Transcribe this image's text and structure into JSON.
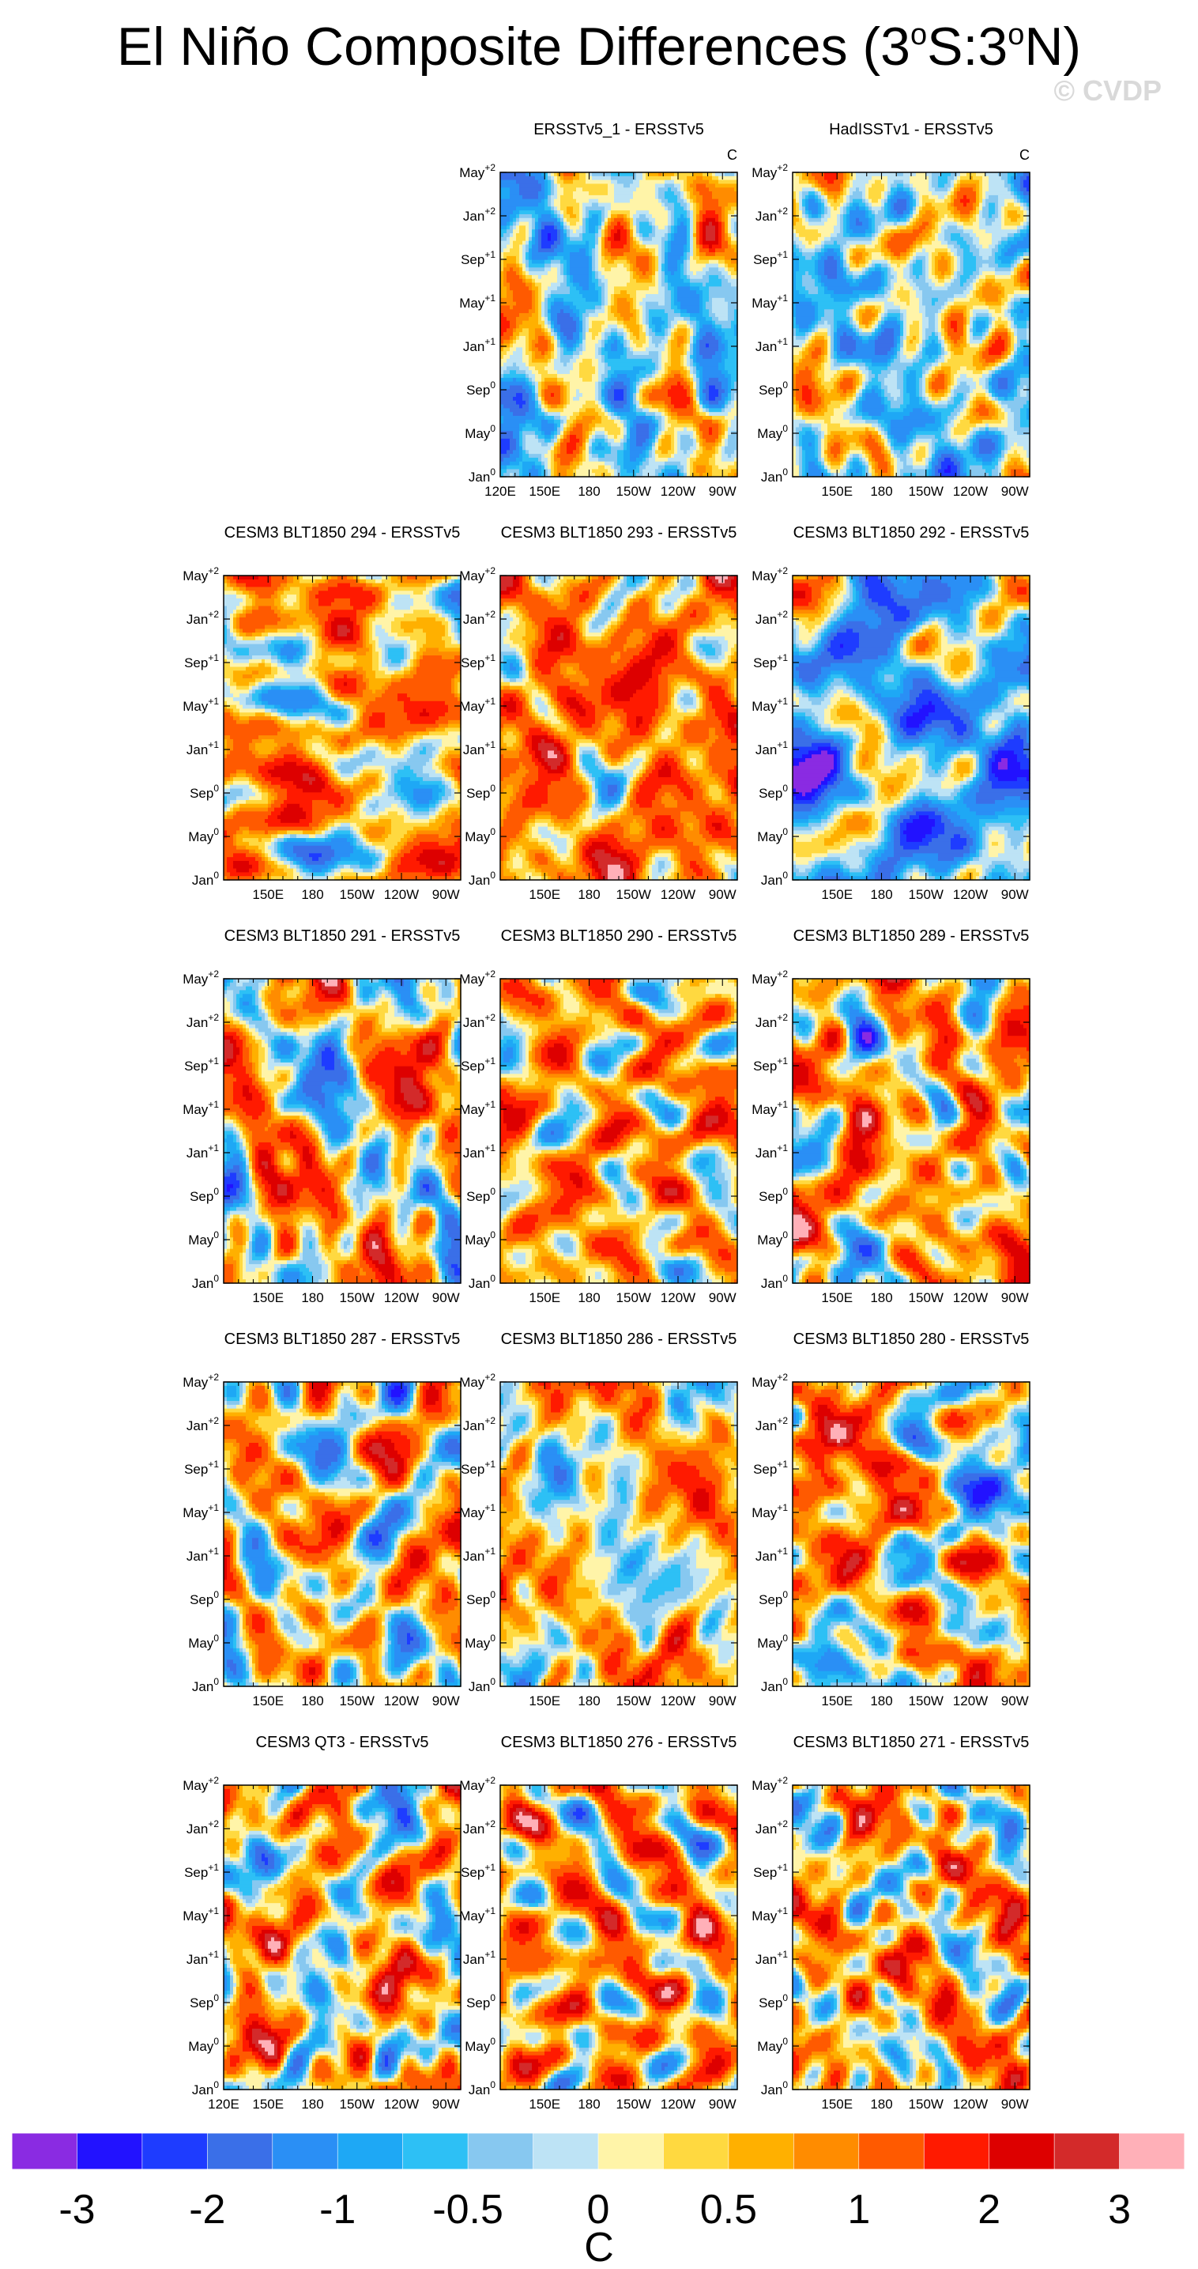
{
  "figure": {
    "title_main": "El Niño Composite Differences (3",
    "title_deg1": "o",
    "title_mid": "S:3",
    "title_deg2": "o",
    "title_end": "N)",
    "watermark": "© CVDP"
  },
  "chart_data": {
    "type": "heatmap",
    "description": "Hovmoller composite differences, longitude vs. time",
    "units": "C",
    "x_ticks": [
      "120E",
      "150E",
      "180",
      "150W",
      "120W",
      "90W"
    ],
    "y_ticks": [
      {
        "base": "Jan",
        "sup": "0"
      },
      {
        "base": "May",
        "sup": "0"
      },
      {
        "base": "Sep",
        "sup": "0"
      },
      {
        "base": "Jan",
        "sup": "+1"
      },
      {
        "base": "May",
        "sup": "+1"
      },
      {
        "base": "Sep",
        "sup": "+1"
      },
      {
        "base": "Jan",
        "sup": "+2"
      },
      {
        "base": "May",
        "sup": "+2"
      }
    ],
    "panels": [
      {
        "row": 0,
        "col": 1,
        "title": "ERSSTv5_1 - ERSSTv5",
        "unit": "C",
        "bias": -0.12,
        "seed": 11,
        "show_120e": true
      },
      {
        "row": 0,
        "col": 2,
        "title": "HadISSTv1 - ERSSTv5",
        "unit": "C",
        "bias": -0.15,
        "seed": 12,
        "show_120e": false
      },
      {
        "row": 1,
        "col": 0,
        "title": "CESM3 BLT1850 294 - ERSSTv5",
        "unit": "",
        "bias": 0.45,
        "seed": 21,
        "show_120e": false
      },
      {
        "row": 1,
        "col": 1,
        "title": "CESM3 BLT1850 293 - ERSSTv5",
        "unit": "",
        "bias": 0.85,
        "seed": 22,
        "show_120e": false
      },
      {
        "row": 1,
        "col": 2,
        "title": "CESM3 BLT1850 292 - ERSSTv5",
        "unit": "",
        "bias": -0.7,
        "seed": 23,
        "show_120e": false
      },
      {
        "row": 2,
        "col": 0,
        "title": "CESM3 BLT1850 291 - ERSSTv5",
        "unit": "",
        "bias": 0.35,
        "seed": 31,
        "show_120e": false
      },
      {
        "row": 2,
        "col": 1,
        "title": "CESM3 BLT1850 290 - ERSSTv5",
        "unit": "",
        "bias": 0.55,
        "seed": 32,
        "show_120e": false
      },
      {
        "row": 2,
        "col": 2,
        "title": "CESM3 BLT1850 289 - ERSSTv5",
        "unit": "",
        "bias": 0.5,
        "seed": 33,
        "show_120e": false
      },
      {
        "row": 3,
        "col": 0,
        "title": "CESM3 BLT1850 287 - ERSSTv5",
        "unit": "",
        "bias": 0.3,
        "seed": 41,
        "show_120e": false
      },
      {
        "row": 3,
        "col": 1,
        "title": "CESM3 BLT1850 286 - ERSSTv5",
        "unit": "",
        "bias": 0.35,
        "seed": 42,
        "show_120e": false
      },
      {
        "row": 3,
        "col": 2,
        "title": "CESM3 BLT1850 280 - ERSSTv5",
        "unit": "",
        "bias": 0.35,
        "seed": 43,
        "show_120e": false
      },
      {
        "row": 4,
        "col": 0,
        "title": "CESM3 QT3 - ERSSTv5",
        "unit": "",
        "bias": 0.35,
        "seed": 51,
        "show_120e": true
      },
      {
        "row": 4,
        "col": 1,
        "title": "CESM3 BLT1850 276 - ERSSTv5",
        "unit": "",
        "bias": 0.55,
        "seed": 52,
        "show_120e": false
      },
      {
        "row": 4,
        "col": 2,
        "title": "CESM3 BLT1850 271 - ERSSTv5",
        "unit": "",
        "bias": 0.45,
        "seed": 53,
        "show_120e": false
      }
    ],
    "colorbar": {
      "colors": [
        "#8a2be2",
        "#2212ff",
        "#1e3cff",
        "#3a6fe8",
        "#2a8ff5",
        "#1ea8f5",
        "#2dc0f5",
        "#87c8f0",
        "#bde3f5",
        "#fff4a8",
        "#ffd940",
        "#ffb000",
        "#ff8c00",
        "#ff5a00",
        "#ff1a00",
        "#dd0000",
        "#d32a2a",
        "#ffb0b8"
      ],
      "levels": [
        -3,
        -2.5,
        -2,
        -1.5,
        -1,
        -0.75,
        -0.5,
        -0.25,
        0,
        0.25,
        0.5,
        0.75,
        1,
        1.5,
        2,
        2.5,
        3
      ],
      "tick_labels": [
        "-3",
        "-2",
        "-1",
        "-0.5",
        "0",
        "0.5",
        "1",
        "2",
        "3"
      ],
      "unit": "C"
    }
  }
}
